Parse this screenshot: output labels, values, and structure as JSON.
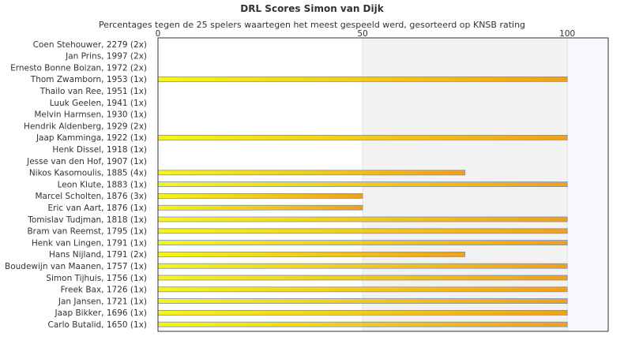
{
  "chart_data": {
    "type": "bar",
    "orientation": "horizontal",
    "title": "DRL Scores Simon van Dijk",
    "subtitle": "Percentages tegen de 25 spelers waartegen het meest gespeeld werd, gesorteerd op KNSB rating",
    "xlim": [
      0,
      110
    ],
    "xticks": [
      "0",
      "50",
      "100"
    ],
    "grid": false,
    "legend": "none",
    "categories": [
      "Coen Stehouwer, 2279 (2x)",
      "Jan Prins, 1997 (2x)",
      "Ernesto Bonne Boizan, 1972 (2x)",
      "Thom Zwamborn, 1953 (1x)",
      "Thailo van Ree, 1951 (1x)",
      "Luuk Geelen, 1941 (1x)",
      "Melvin Harmsen, 1930 (1x)",
      "Hendrik Aldenberg, 1929 (2x)",
      "Jaap Kamminga, 1922 (1x)",
      "Henk Dissel, 1918 (1x)",
      "Jesse van den Hof, 1907 (1x)",
      "Nikos Kasomoulis, 1885 (4x)",
      "Leon Klute, 1883 (1x)",
      "Marcel Scholten, 1876 (3x)",
      "Eric van Aart, 1876 (1x)",
      "Tomislav Tudjman, 1818 (1x)",
      "Bram van Reemst, 1795 (1x)",
      "Henk van Lingen, 1791 (1x)",
      "Hans Nijland, 1791 (2x)",
      "Boudewijn van Maanen, 1757 (1x)",
      "Simon Tijhuis, 1756 (1x)",
      "Freek Bax, 1726 (1x)",
      "Jan Jansen, 1721 (1x)",
      "Jaap Bikker, 1696 (1x)",
      "Carlo Butalid, 1650 (1x)"
    ],
    "values": [
      0,
      0,
      0,
      100,
      0,
      0,
      0,
      0,
      100,
      0,
      0,
      75,
      100,
      50,
      50,
      100,
      100,
      100,
      75,
      100,
      100,
      100,
      100,
      100,
      100
    ],
    "colors": {
      "bar_start": "#f5f51c",
      "bar_end": "#f0a01e",
      "bar_border": "#7a8fae",
      "band_50_100": "#f2f2f2",
      "band_100_110": "#f7f8fc",
      "axis": "#333333"
    }
  }
}
